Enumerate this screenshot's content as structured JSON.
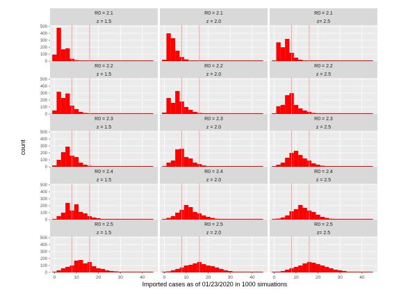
{
  "chart_data": {
    "type": "bar",
    "subtype": "faceted-histogram",
    "xlabel": "Imported cases as of 01/23/2020 in 1000 simuations",
    "ylabel": "count",
    "xlim": [
      -2,
      47
    ],
    "ylim": [
      0,
      520
    ],
    "x_ticks": [
      0,
      10,
      20,
      30,
      40
    ],
    "y_ticks": [
      0,
      100,
      200,
      300,
      400,
      500
    ],
    "bin_width": 2,
    "first_bin_start": -1,
    "reference_lines": [
      8,
      16
    ],
    "colors": {
      "bar": "#ff0000",
      "reference_line": "#ff8c8c",
      "panel_bg": "#ebebeb",
      "strip_bg": "#d9d9d9",
      "grid": "#ffffff"
    },
    "grid": true,
    "panels": [
      {
        "row_label": "R0 = 2.1",
        "col_label": "z = 1.5",
        "counts": [
          95,
          480,
          170,
          185,
          35,
          15,
          5,
          3,
          2
        ]
      },
      {
        "row_label": "R0 = 2.1",
        "col_label": "z = 2.0",
        "counts": [
          20,
          400,
          330,
          150,
          60,
          25,
          10,
          5,
          2
        ]
      },
      {
        "row_label": "R0 = 2.1",
        "col_label": "z= 2.5",
        "counts": [
          10,
          270,
          200,
          320,
          120,
          50,
          20,
          8,
          3,
          2
        ]
      },
      {
        "row_label": "R0 = 2.2",
        "col_label": "z = 1.5",
        "counts": [
          50,
          320,
          230,
          295,
          120,
          70,
          30,
          15,
          8,
          4,
          2
        ]
      },
      {
        "row_label": "R0 = 2.2",
        "col_label": "z = 2.0",
        "counts": [
          20,
          230,
          160,
          330,
          180,
          100,
          60,
          30,
          15,
          8,
          4,
          2
        ]
      },
      {
        "row_label": "R0 = 2.2",
        "col_label": "z = 2.5",
        "counts": [
          10,
          110,
          130,
          270,
          300,
          130,
          80,
          50,
          30,
          15,
          8,
          4,
          2
        ]
      },
      {
        "row_label": "R0 = 2.3",
        "col_label": "z = 1.5",
        "counts": [
          20,
          100,
          210,
          290,
          160,
          140,
          60,
          30,
          15,
          8,
          4,
          2
        ]
      },
      {
        "row_label": "R0 = 2.3",
        "col_label": "z = 2.0",
        "counts": [
          10,
          60,
          90,
          250,
          260,
          140,
          120,
          60,
          40,
          20,
          10,
          5,
          2
        ]
      },
      {
        "row_label": "R0 = 2.3",
        "col_label": "z = 2.5",
        "counts": [
          5,
          30,
          60,
          130,
          200,
          230,
          170,
          120,
          90,
          50,
          30,
          15,
          8,
          4,
          2
        ]
      },
      {
        "row_label": "R0 = 2.4",
        "col_label": "z = 1.5",
        "counts": [
          10,
          50,
          100,
          240,
          130,
          220,
          110,
          90,
          50,
          30,
          20,
          10,
          5,
          2
        ]
      },
      {
        "row_label": "R0 = 2.4",
        "col_label": "z = 2.0",
        "counts": [
          5,
          25,
          50,
          100,
          140,
          210,
          180,
          110,
          90,
          60,
          40,
          25,
          12,
          6,
          3,
          2
        ]
      },
      {
        "row_label": "R0 = 2.4",
        "col_label": "z = 2.5",
        "counts": [
          3,
          15,
          30,
          60,
          120,
          150,
          210,
          170,
          130,
          110,
          70,
          40,
          25,
          12,
          6,
          3
        ]
      },
      {
        "row_label": "R0 = 2.5",
        "col_label": "z = 1.5",
        "counts": [
          5,
          30,
          60,
          80,
          100,
          170,
          180,
          130,
          150,
          90,
          60,
          50,
          30,
          20,
          15,
          10,
          5,
          3,
          2
        ]
      },
      {
        "row_label": "R0 = 2.5",
        "col_label": "z = 2.0",
        "counts": [
          3,
          15,
          30,
          50,
          70,
          100,
          110,
          130,
          150,
          120,
          100,
          90,
          70,
          50,
          30,
          20,
          10,
          5,
          3,
          2
        ]
      },
      {
        "row_label": "R0 = 2.5",
        "col_label": "z= 2.5",
        "counts": [
          2,
          10,
          20,
          40,
          60,
          80,
          100,
          130,
          150,
          140,
          120,
          100,
          80,
          60,
          40,
          30,
          20,
          10,
          5,
          3
        ]
      }
    ]
  }
}
